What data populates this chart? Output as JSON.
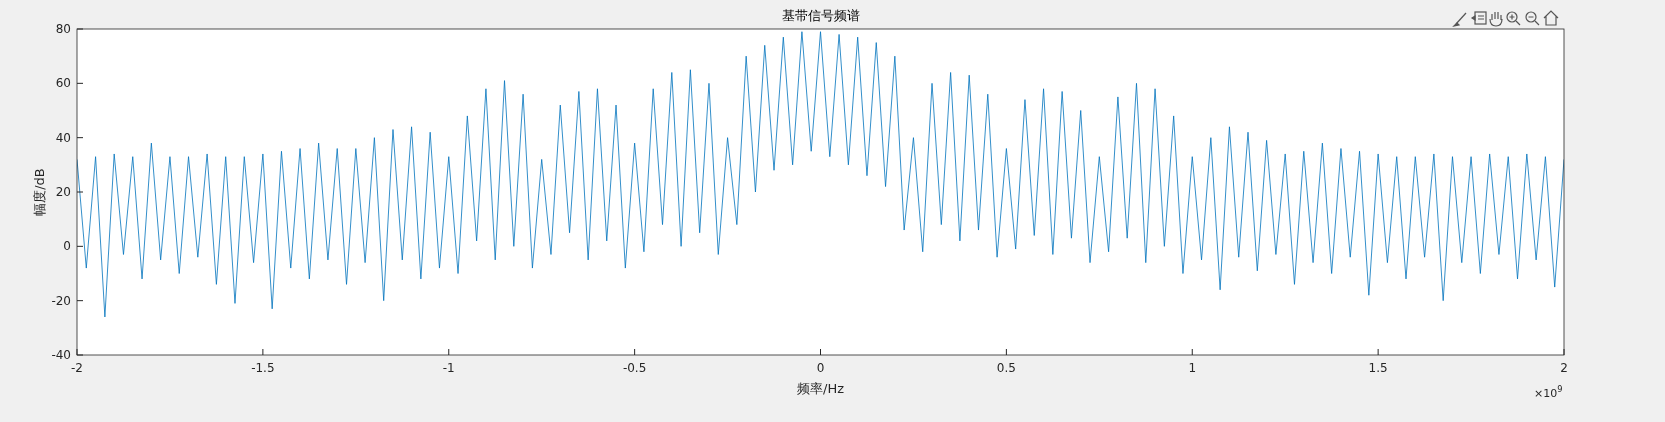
{
  "chart_data": {
    "type": "line",
    "title": "基带信号频谱",
    "xlabel": "频率/Hz",
    "ylabel": "幅度/dB",
    "annotations": [
      "×10$^{9}$"
    ],
    "xlim": [
      -2,
      2
    ],
    "xticks": [
      -2,
      -1.5,
      -1,
      -0.5,
      0,
      0.5,
      1,
      1.5,
      2
    ],
    "ylim": [
      -40,
      80
    ],
    "yticks": [
      -40,
      -20,
      0,
      20,
      40,
      60,
      80
    ],
    "x": [
      -2,
      -1.975,
      -1.95,
      -1.925,
      -1.9,
      -1.875,
      -1.85,
      -1.825,
      -1.8,
      -1.775,
      -1.75,
      -1.725,
      -1.7,
      -1.675,
      -1.65,
      -1.625,
      -1.6,
      -1.575,
      -1.55,
      -1.525,
      -1.5,
      -1.475,
      -1.45,
      -1.425,
      -1.4,
      -1.375,
      -1.35,
      -1.325,
      -1.3,
      -1.275,
      -1.25,
      -1.225,
      -1.2,
      -1.175,
      -1.15,
      -1.125,
      -1.1,
      -1.075,
      -1.05,
      -1.025,
      -1,
      -0.975,
      -0.95,
      -0.925,
      -0.9,
      -0.875,
      -0.85,
      -0.825,
      -0.8,
      -0.775,
      -0.75,
      -0.725,
      -0.7,
      -0.675,
      -0.65,
      -0.625,
      -0.6,
      -0.575,
      -0.55,
      -0.525,
      -0.5,
      -0.475,
      -0.45,
      -0.425,
      -0.4,
      -0.375,
      -0.35,
      -0.325,
      -0.3,
      -0.275,
      -0.25,
      -0.225,
      -0.2,
      -0.175,
      -0.15,
      -0.125,
      -0.1,
      -0.075,
      -0.05,
      -0.025,
      0,
      0.025,
      0.05,
      0.075,
      0.1,
      0.125,
      0.15,
      0.175,
      0.2,
      0.225,
      0.25,
      0.275,
      0.3,
      0.325,
      0.35,
      0.375,
      0.4,
      0.425,
      0.45,
      0.475,
      0.5,
      0.525,
      0.55,
      0.575,
      0.6,
      0.625,
      0.65,
      0.675,
      0.7,
      0.725,
      0.75,
      0.775,
      0.8,
      0.825,
      0.85,
      0.875,
      0.9,
      0.925,
      0.95,
      0.975,
      1,
      1.025,
      1.05,
      1.075,
      1.1,
      1.125,
      1.15,
      1.175,
      1.2,
      1.225,
      1.25,
      1.275,
      1.3,
      1.325,
      1.35,
      1.375,
      1.4,
      1.425,
      1.45,
      1.475,
      1.5,
      1.525,
      1.55,
      1.575,
      1.6,
      1.625,
      1.65,
      1.675,
      1.7,
      1.725,
      1.75,
      1.775,
      1.8,
      1.825,
      1.85,
      1.875,
      1.9,
      1.925,
      1.95,
      1.975,
      2
    ],
    "series": [
      {
        "color": "#0072bd",
        "values": [
          32,
          -8,
          33,
          -26,
          34,
          -3,
          33,
          -12,
          38,
          -5,
          33,
          -10,
          33,
          -4,
          34,
          -14,
          33,
          -21,
          33,
          -6,
          34,
          -23,
          35,
          -8,
          36,
          -12,
          38,
          -5,
          36,
          -14,
          36,
          -6,
          40,
          -20,
          43,
          -5,
          44,
          -12,
          42,
          -8,
          33,
          -10,
          48,
          2,
          58,
          -5,
          61,
          0,
          56,
          -8,
          32,
          -3,
          52,
          5,
          57,
          -5,
          58,
          2,
          52,
          -8,
          38,
          -2,
          58,
          8,
          64,
          0,
          65,
          5,
          60,
          -3,
          40,
          8,
          70,
          20,
          74,
          28,
          77,
          30,
          79,
          35,
          79,
          33,
          78,
          30,
          77,
          26,
          75,
          22,
          70,
          6,
          40,
          -2,
          60,
          8,
          64,
          2,
          63,
          6,
          56,
          -4,
          36,
          -1,
          54,
          4,
          58,
          -3,
          57,
          3,
          50,
          -6,
          33,
          -2,
          55,
          3,
          60,
          -6,
          58,
          0,
          48,
          -10,
          33,
          -5,
          40,
          -16,
          44,
          -4,
          42,
          -9,
          39,
          -3,
          34,
          -14,
          35,
          -6,
          38,
          -10,
          36,
          -4,
          35,
          -18,
          34,
          -6,
          33,
          -12,
          33,
          -4,
          34,
          -20,
          33,
          -6,
          33,
          -10,
          34,
          -3,
          33,
          -12,
          34,
          -5,
          33,
          -15,
          32
        ]
      }
    ],
    "line_style": "solid"
  }
}
